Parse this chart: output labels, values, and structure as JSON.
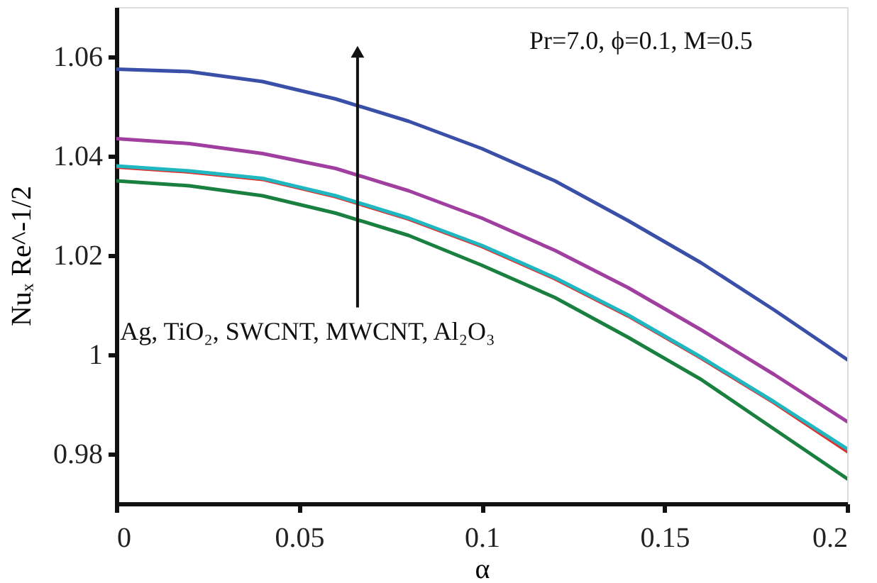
{
  "chart_data": {
    "type": "line",
    "xlabel": "α",
    "ylabel": "Nuₓ Re^-1/2",
    "x": [
      0,
      0.02,
      0.04,
      0.06,
      0.08,
      0.1,
      0.12,
      0.14,
      0.16,
      0.18,
      0.2
    ],
    "series": [
      {
        "color": "#3a4fa8",
        "values": [
          1.0575,
          1.057,
          1.055,
          1.0515,
          1.047,
          1.0415,
          1.035,
          1.027,
          1.0185,
          1.009,
          0.999
        ]
      },
      {
        "color": "#a03fa0",
        "values": [
          1.0435,
          1.0425,
          1.0405,
          1.0375,
          1.033,
          1.0275,
          1.021,
          1.0135,
          1.005,
          0.996,
          0.9865
        ]
      },
      {
        "color": "#e03030",
        "values": [
          1.0378,
          1.0368,
          1.0353,
          1.0318,
          1.0273,
          1.0218,
          1.0153,
          1.0078,
          0.9993,
          0.9903,
          0.9805
        ]
      },
      {
        "color": "#20b8c0",
        "values": [
          1.038,
          1.037,
          1.0355,
          1.032,
          1.0275,
          1.022,
          1.0155,
          1.008,
          0.9995,
          0.9905,
          0.981
        ]
      },
      {
        "color": "#1a8040",
        "values": [
          1.035,
          1.034,
          1.032,
          1.0285,
          1.024,
          1.018,
          1.0115,
          1.0035,
          0.995,
          0.985,
          0.975
        ]
      }
    ],
    "xlim": [
      0,
      0.2
    ],
    "ylim": [
      0.97,
      1.07
    ],
    "xticks": [
      0,
      0.05,
      0.1,
      0.15,
      0.2
    ],
    "yticks": [
      0.98,
      {
        "value": 1,
        "label": "1"
      },
      1.02,
      1.04,
      1.06
    ],
    "grid": false,
    "legend": false,
    "marker": "none",
    "line_style": "solid",
    "annotations": [
      "Pr=7.0, ϕ=0.1, M=0.5",
      "Ag, TiO₂, SWCNT, MWCNT, Al₂O₃"
    ]
  }
}
